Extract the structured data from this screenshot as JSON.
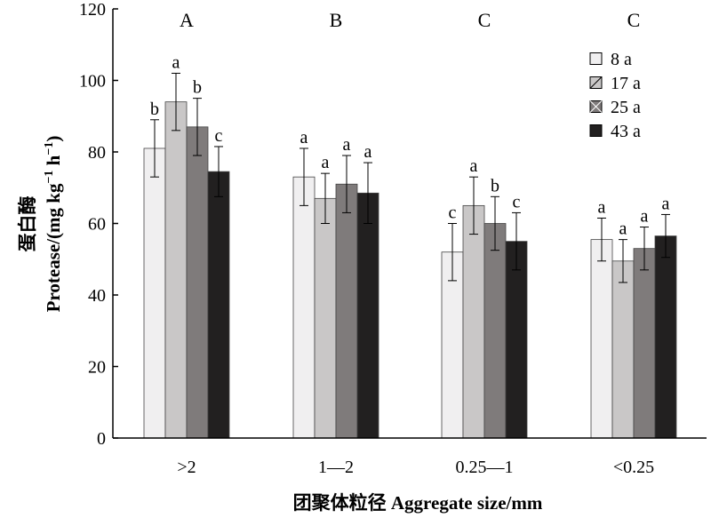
{
  "chart_data": {
    "type": "bar",
    "categories": [
      ">2",
      "1—2",
      "0.25—1",
      "<0.25"
    ],
    "group_letters": [
      "A",
      "B",
      "C",
      "C"
    ],
    "series": [
      {
        "name": "8 a",
        "values": [
          81,
          73,
          52,
          55.5
        ],
        "errors": [
          8,
          8,
          8,
          6
        ],
        "letters": [
          "b",
          "a",
          "c",
          "a"
        ],
        "color": "#f0eff0"
      },
      {
        "name": "17 a",
        "values": [
          94,
          67,
          65,
          49.5
        ],
        "errors": [
          8,
          7,
          8,
          6
        ],
        "letters": [
          "a",
          "a",
          "a",
          "a"
        ],
        "color": "#c9c7c7"
      },
      {
        "name": "25 a",
        "values": [
          87,
          71,
          60,
          53
        ],
        "errors": [
          8,
          8,
          7.5,
          6
        ],
        "letters": [
          "b",
          "a",
          "b",
          "a"
        ],
        "color": "#7f7b7b"
      },
      {
        "name": "43 a",
        "values": [
          74.5,
          68.5,
          55,
          56.5
        ],
        "errors": [
          7,
          8.5,
          8,
          6
        ],
        "letters": [
          "c",
          "a",
          "c",
          "a"
        ],
        "color": "#222020"
      }
    ],
    "ylim": [
      0,
      120
    ],
    "yticks": [
      "0",
      "20",
      "40",
      "60",
      "80",
      "100",
      "120"
    ],
    "ylabel_cn": "蛋白酶",
    "ylabel_en": "Protease/(mg kg",
    "ylabel_unit_sup1": "−1",
    "ylabel_unit_mid": " h",
    "ylabel_unit_sup2": "−1",
    "ylabel_unit_end": ")",
    "xlabel": "团聚体粒径 Aggregate size/mm",
    "legend_position": "top-right",
    "grid": false
  }
}
